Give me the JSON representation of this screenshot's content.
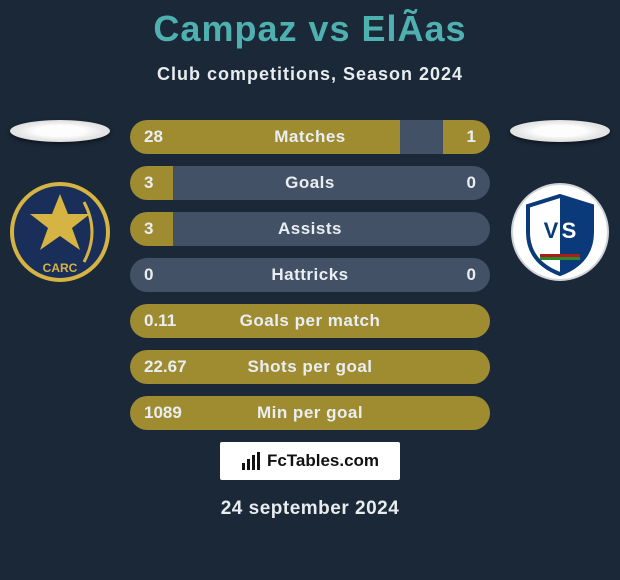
{
  "background_color": "#1a2838",
  "title": {
    "text": "Campaz vs ElÃ­as",
    "fontsize": 36,
    "color": "#4fb0b0"
  },
  "subtitle": {
    "text": "Club competitions, Season 2024",
    "fontsize": 18,
    "color": "#e8ecef"
  },
  "left_team": {
    "crest_bg": "#1a2e5a",
    "crest_accent": "#d6b443",
    "crest_label": "CARC"
  },
  "right_team": {
    "crest_bg": "#ffffff",
    "crest_accent": "#0a3a7a",
    "crest_label": "VS"
  },
  "bars": {
    "track_color": "#435166",
    "left_color": "#9f8c31",
    "right_color": "#9f8c31",
    "label_fontsize": 17,
    "value_fontsize": 17,
    "rows": [
      {
        "label": "Matches",
        "left_val": "28",
        "right_val": "1",
        "left_pct": 75,
        "right_pct": 13
      },
      {
        "label": "Goals",
        "left_val": "3",
        "right_val": "0",
        "left_pct": 12,
        "right_pct": 0
      },
      {
        "label": "Assists",
        "left_val": "3",
        "right_val": "",
        "left_pct": 12,
        "right_pct": 0
      },
      {
        "label": "Hattricks",
        "left_val": "0",
        "right_val": "0",
        "left_pct": 0,
        "right_pct": 0
      },
      {
        "label": "Goals per match",
        "left_val": "0.11",
        "right_val": "",
        "left_pct": 100,
        "right_pct": 0
      },
      {
        "label": "Shots per goal",
        "left_val": "22.67",
        "right_val": "",
        "left_pct": 100,
        "right_pct": 0
      },
      {
        "label": "Min per goal",
        "left_val": "1089",
        "right_val": "",
        "left_pct": 100,
        "right_pct": 0
      }
    ]
  },
  "footer": {
    "logo_text": "FcTables.com",
    "date": "24 september 2024",
    "date_fontsize": 19
  }
}
